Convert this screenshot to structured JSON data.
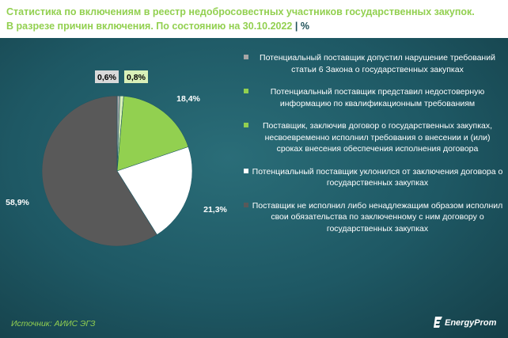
{
  "title_line1": "Статистика по включениям в реестр недобросовестных участников государственных закупок.",
  "title_line2": "В разрезе причин включения. По состоянию на 30.10.2022",
  "title_unit": "| %",
  "source": "Источник: АИИС ЭГЗ",
  "logo": "EnergyProm",
  "chart_data": {
    "type": "pie",
    "slices": [
      {
        "label": "Потенциальный поставщик допустил нарушение требований статьи 6 Закона о государственных закупках",
        "value": 0.6,
        "value_label": "0,6%",
        "color": "#a6a6a6"
      },
      {
        "label": "Потенциальный поставщик представил недостоверную информацию по квалификационным требованиям",
        "value": 0.8,
        "value_label": "0,8%",
        "color": "#d9f0b8"
      },
      {
        "label": "Поставщик, заключив договор о государственных закупках, несвоевременно исполнил требования о внесении и (или) сроках внесения обеспечения исполнения договора",
        "value": 18.4,
        "value_label": "18,4%",
        "color": "#92d050"
      },
      {
        "label": "Потенциальный поставщик уклонился от заключения договора о государственных закупках",
        "value": 21.3,
        "value_label": "21,3%",
        "color": "#ffffff"
      },
      {
        "label": "Поставщик не исполнил либо ненадлежащим образом исполнил свои обязательства по заключенному с ним договору о государственных закупках",
        "value": 58.9,
        "value_label": "58,9%",
        "color": "#595959"
      }
    ]
  }
}
